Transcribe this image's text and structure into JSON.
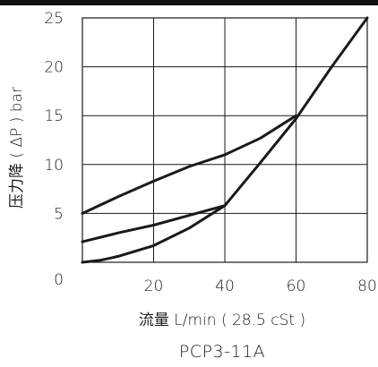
{
  "chart_data": {
    "type": "line",
    "title": "PCP3-11A",
    "xlabel": "流量 L/min ( 28.5 cSt )",
    "ylabel": "压力降 ( ΔP ) bar",
    "xlim": [
      0,
      80
    ],
    "ylim": [
      0,
      25
    ],
    "xticks": [
      "20",
      "40",
      "60",
      "80"
    ],
    "yticks": [
      "0",
      "5",
      "10",
      "15",
      "20",
      "25"
    ],
    "grid": true,
    "series": [
      {
        "x": [
          0,
          10,
          20,
          30,
          40,
          50,
          60
        ],
        "y": [
          5,
          6.7,
          8.3,
          9.8,
          11,
          12.7,
          15
        ]
      },
      {
        "x": [
          0,
          10,
          20,
          30,
          40
        ],
        "y": [
          2.1,
          3.0,
          3.8,
          4.8,
          5.8
        ]
      },
      {
        "x": [
          0,
          5,
          10,
          20,
          30,
          40,
          50,
          60,
          70,
          80
        ],
        "y": [
          0,
          0.2,
          0.6,
          1.7,
          3.5,
          5.8,
          10.2,
          14.7,
          20,
          25
        ]
      }
    ]
  }
}
